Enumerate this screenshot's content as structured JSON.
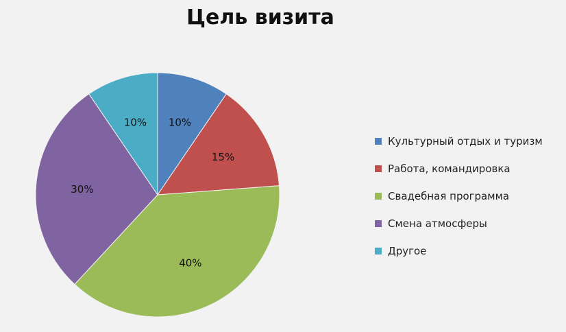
{
  "chart_data": {
    "type": "pie",
    "title": "Цель визита",
    "categories": [
      "Культурный отдых и туризм",
      "Работа, командировка",
      "Свадебная программа",
      "Смена атмосферы",
      "Другое"
    ],
    "values": [
      10,
      15,
      40,
      30,
      10
    ],
    "value_labels": [
      "10%",
      "15%",
      "40%",
      "30%",
      "10%"
    ],
    "colors": [
      "#4f81bd",
      "#c0504d",
      "#9bbb59",
      "#8064a2",
      "#4bacc6"
    ],
    "legend_position": "right"
  }
}
